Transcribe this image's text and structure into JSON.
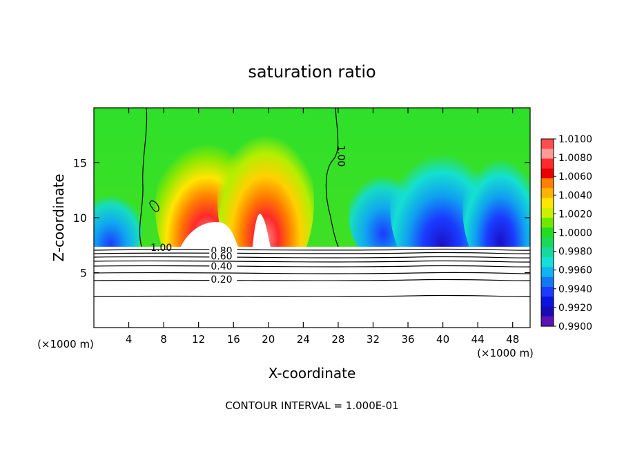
{
  "chart_data": {
    "type": "heatmap",
    "title": "saturation ratio",
    "xlabel": "X-coordinate",
    "ylabel": "Z-coordinate",
    "x_unit": "(×1000 m)",
    "x_ticks": [
      4,
      8,
      12,
      16,
      20,
      24,
      28,
      32,
      36,
      40,
      44,
      48
    ],
    "y_ticks": [
      5,
      10,
      15
    ],
    "xlim": [
      0,
      50
    ],
    "ylim": [
      0,
      20
    ],
    "footer": "CONTOUR INTERVAL = 1.000E-01",
    "colorbar": {
      "labels": [
        "1.0100",
        "1.0080",
        "1.0060",
        "1.0040",
        "1.0020",
        "1.0000",
        "0.9980",
        "0.9960",
        "0.9940",
        "0.9920",
        "0.9900"
      ],
      "colors": [
        "#ff4d4d",
        "#ff9a9a",
        "#ff2a2a",
        "#e60000",
        "#ff8000",
        "#ffb300",
        "#ffe600",
        "#c8f000",
        "#6fe800",
        "#22dc22",
        "#1ad85a",
        "#16d9a0",
        "#14e0d8",
        "#10b4f0",
        "#1478f0",
        "#1a3cff",
        "#0a14e0",
        "#1a0ab4",
        "#5a14b4"
      ]
    },
    "contour_labels": [
      {
        "text": "1.00",
        "x": 28.6,
        "y": 16.6
      },
      {
        "text": "1.00",
        "x": 6.5,
        "y": 7.3
      },
      {
        "text": "0.80",
        "x": 13.4,
        "y": 7.0
      },
      {
        "text": "0.60",
        "x": 13.4,
        "y": 6.5
      },
      {
        "text": "0.40",
        "x": 13.4,
        "y": 5.6
      },
      {
        "text": "0.20",
        "x": 13.4,
        "y": 4.4
      }
    ]
  }
}
